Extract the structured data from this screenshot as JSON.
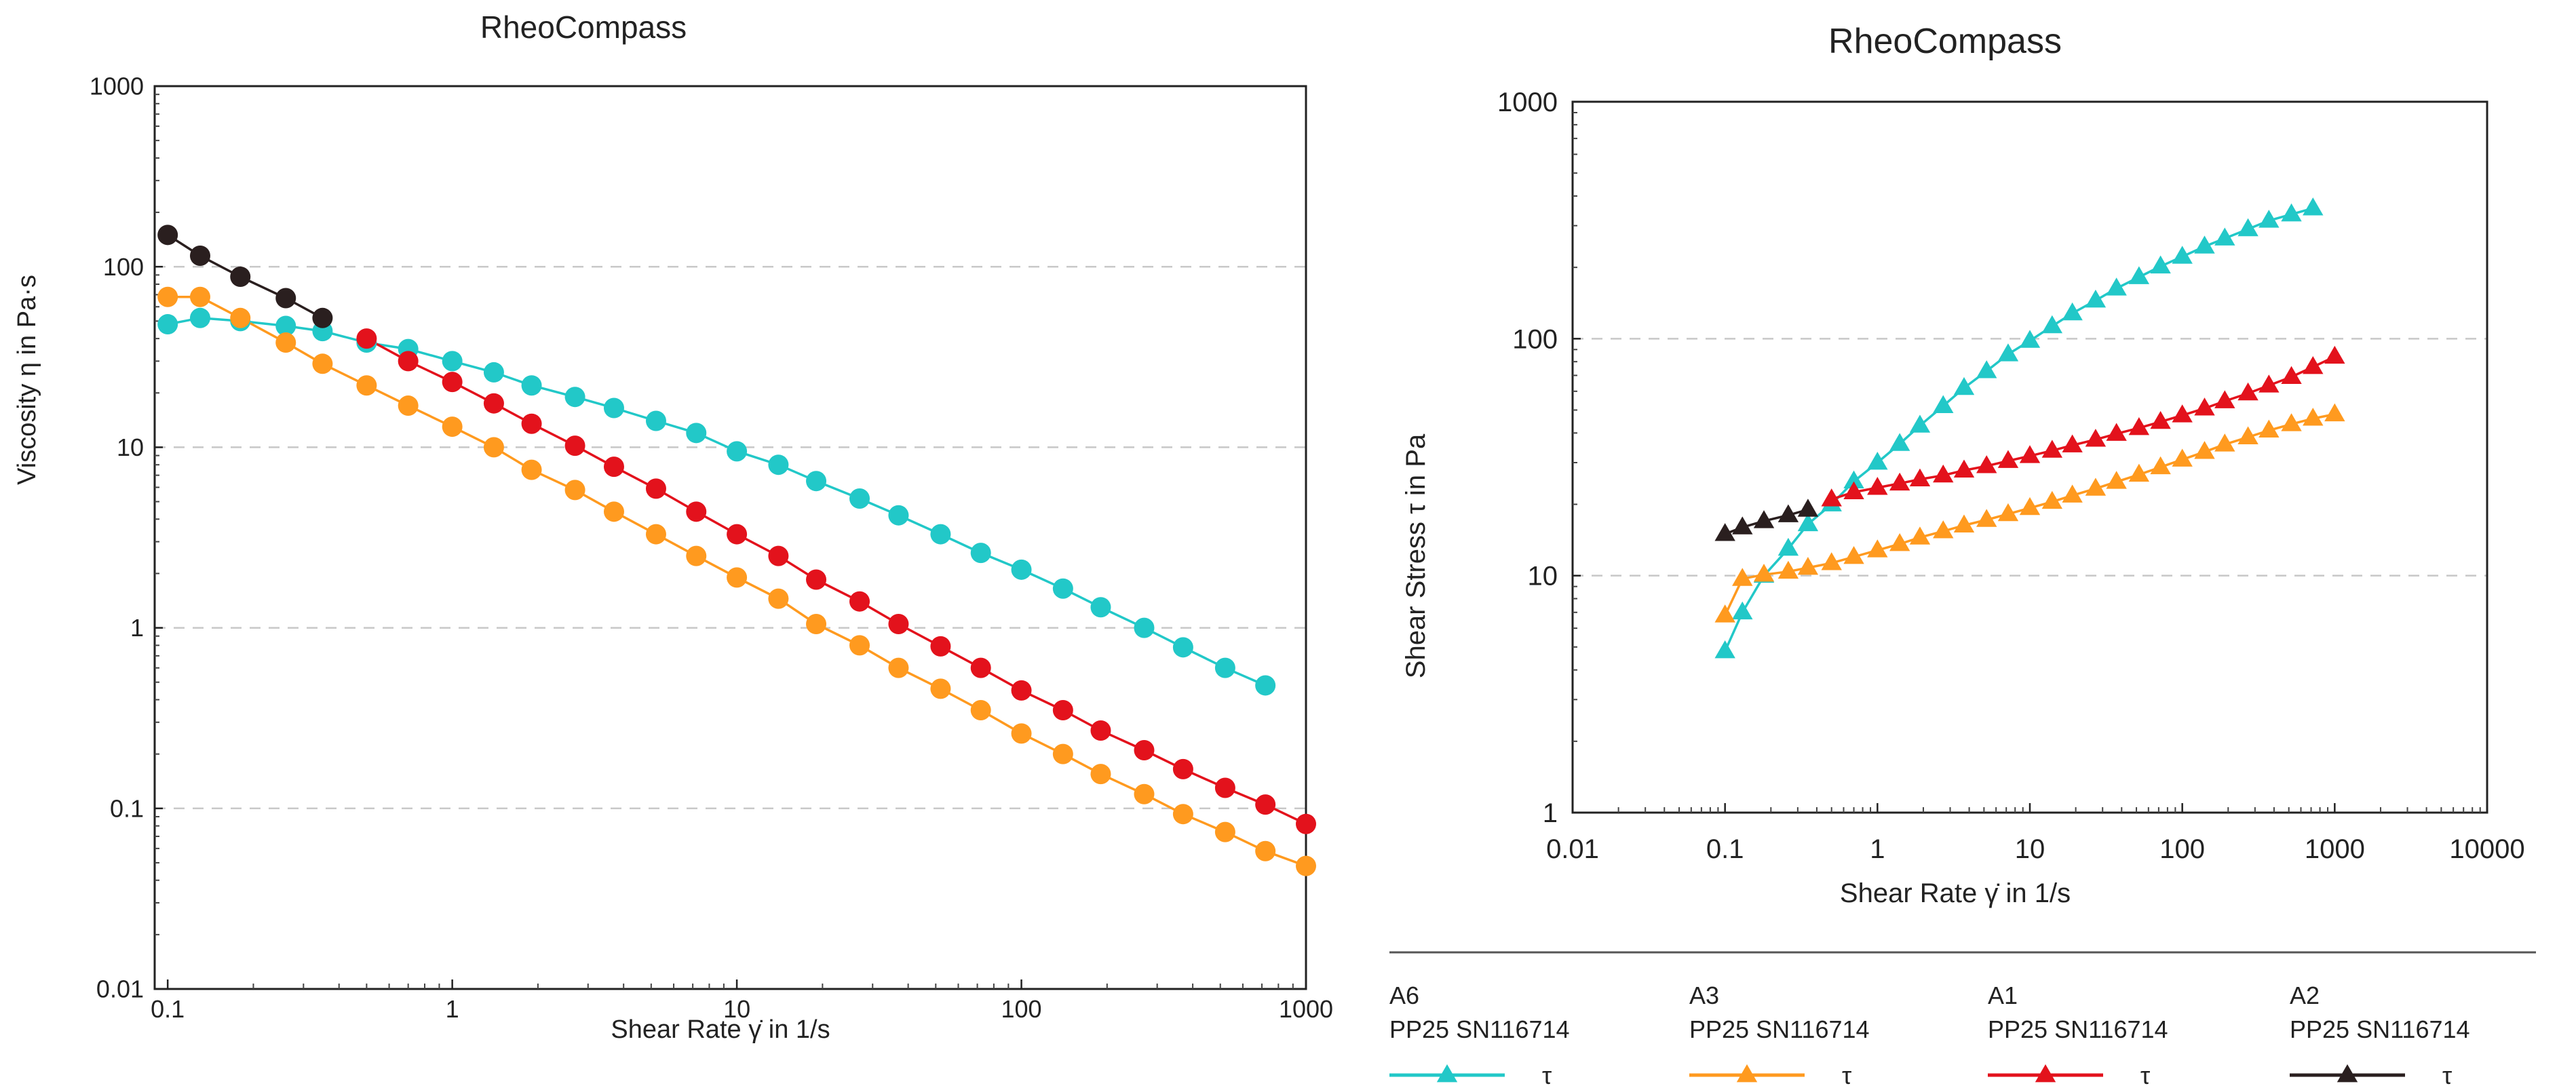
{
  "colors": {
    "A6": "#22c8c8",
    "A3": "#ff9a1f",
    "A1": "#e3121c",
    "A2": "#2a1f1f",
    "grid": "#c8c8c8",
    "legend_rule": "#555555"
  },
  "chart_data": [
    {
      "type": "line",
      "scale": "log-log",
      "title": "RheoCompass",
      "xlabel": "Shear Rate γ̇ in 1/s",
      "ylabel": "Viscosity η in Pa·s",
      "xlim": [
        0.09,
        1000
      ],
      "ylim": [
        0.01,
        1000
      ],
      "xticks": [
        0.1,
        1,
        10,
        100,
        1000
      ],
      "xtick_labels": [
        "0.1",
        "1",
        "10",
        "100",
        "1000"
      ],
      "yticks": [
        0.01,
        0.1,
        1,
        10,
        100,
        1000
      ],
      "ytick_labels": [
        "0.01",
        "0.1",
        "1",
        "10",
        "100",
        "1000"
      ],
      "grid": "horizontal dashed",
      "marker": "circle",
      "series": [
        {
          "name": "A6",
          "color_key": "A6",
          "x": [
            0.1,
            0.13,
            0.18,
            0.26,
            0.35,
            0.5,
            0.7,
            1,
            1.4,
            1.9,
            2.7,
            3.7,
            5.2,
            7.2,
            10,
            14,
            19,
            27,
            37,
            52,
            72,
            100,
            140,
            190,
            270,
            370,
            520,
            720
          ],
          "y": [
            48,
            52,
            50,
            47,
            44,
            38,
            35,
            30,
            26,
            22,
            19,
            16.5,
            14,
            12,
            9.5,
            8,
            6.5,
            5.2,
            4.2,
            3.3,
            2.6,
            2.1,
            1.65,
            1.3,
            1.0,
            0.78,
            0.6,
            0.48
          ]
        },
        {
          "name": "A3",
          "color_key": "A3",
          "x": [
            0.1,
            0.13,
            0.18,
            0.26,
            0.35,
            0.5,
            0.7,
            1,
            1.4,
            1.9,
            2.7,
            3.7,
            5.2,
            7.2,
            10,
            14,
            19,
            27,
            37,
            52,
            72,
            100,
            140,
            190,
            270,
            370,
            520,
            720,
            1000
          ],
          "y": [
            68,
            68,
            52,
            38,
            29,
            22,
            17,
            13,
            10,
            7.5,
            5.8,
            4.4,
            3.3,
            2.5,
            1.9,
            1.45,
            1.05,
            0.8,
            0.6,
            0.46,
            0.35,
            0.26,
            0.2,
            0.155,
            0.12,
            0.093,
            0.074,
            0.058,
            0.048
          ]
        },
        {
          "name": "A1",
          "color_key": "A1",
          "x": [
            0.5,
            0.7,
            1,
            1.4,
            1.9,
            2.7,
            3.7,
            5.2,
            7.2,
            10,
            14,
            19,
            27,
            37,
            52,
            72,
            100,
            140,
            190,
            270,
            370,
            520,
            720,
            1000
          ],
          "y": [
            40,
            30,
            23,
            17.5,
            13.5,
            10.2,
            7.8,
            5.9,
            4.4,
            3.3,
            2.5,
            1.85,
            1.4,
            1.05,
            0.79,
            0.6,
            0.45,
            0.35,
            0.27,
            0.21,
            0.165,
            0.13,
            0.105,
            0.082
          ]
        },
        {
          "name": "A2",
          "color_key": "A2",
          "x": [
            0.1,
            0.13,
            0.18,
            0.26,
            0.35
          ],
          "y": [
            150,
            115,
            88,
            67,
            52
          ]
        }
      ]
    },
    {
      "type": "line",
      "scale": "log-log",
      "title": "RheoCompass",
      "xlabel": "Shear Rate γ̇ in 1/s",
      "ylabel": "Shear Stress τ in Pa",
      "xlim": [
        0.01,
        10000
      ],
      "ylim": [
        1,
        1000
      ],
      "xticks": [
        0.01,
        0.1,
        1,
        10,
        100,
        1000,
        10000
      ],
      "xtick_labels": [
        "0.01",
        "0.1",
        "1",
        "10",
        "100",
        "1000",
        "10000"
      ],
      "yticks": [
        1,
        10,
        100,
        1000
      ],
      "ytick_labels": [
        "1",
        "10",
        "100",
        "1000"
      ],
      "grid": "horizontal dashed",
      "marker": "triangle",
      "series": [
        {
          "name": "A6",
          "color_key": "A6",
          "x": [
            0.1,
            0.13,
            0.18,
            0.26,
            0.35,
            0.5,
            0.7,
            1,
            1.4,
            1.9,
            2.7,
            3.7,
            5.2,
            7.2,
            10,
            14,
            19,
            27,
            37,
            52,
            72,
            100,
            140,
            190,
            270,
            370,
            520,
            720
          ],
          "y": [
            4.8,
            7,
            10,
            13,
            16.5,
            20,
            25,
            30,
            36,
            43,
            52,
            62,
            73,
            86,
            98,
            113,
            128,
            145,
            163,
            182,
            202,
            222,
            245,
            265,
            290,
            315,
            335,
            355
          ]
        },
        {
          "name": "A3",
          "color_key": "A3",
          "x": [
            0.1,
            0.13,
            0.18,
            0.26,
            0.35,
            0.5,
            0.7,
            1,
            1.4,
            1.9,
            2.7,
            3.7,
            5.2,
            7.2,
            10,
            14,
            19,
            27,
            37,
            52,
            72,
            100,
            140,
            190,
            270,
            370,
            520,
            720,
            1000
          ],
          "y": [
            6.8,
            9.7,
            10.1,
            10.4,
            10.8,
            11.3,
            12.0,
            12.8,
            13.6,
            14.5,
            15.4,
            16.3,
            17.2,
            18.2,
            19.3,
            20.5,
            21.8,
            23.3,
            24.9,
            26.7,
            28.7,
            30.9,
            33.3,
            35.8,
            38.4,
            41.0,
            43.6,
            46.0,
            48.0
          ]
        },
        {
          "name": "A1",
          "color_key": "A1",
          "x": [
            0.5,
            0.7,
            1,
            1.4,
            1.9,
            2.7,
            3.7,
            5.2,
            7.2,
            10,
            14,
            19,
            27,
            37,
            52,
            72,
            100,
            140,
            190,
            270,
            370,
            520,
            720,
            1000
          ],
          "y": [
            21,
            22.5,
            23.5,
            24.5,
            25.5,
            26.5,
            27.8,
            29,
            30.5,
            32,
            33.7,
            35.5,
            37.5,
            39.7,
            42,
            44.6,
            47.5,
            50.8,
            54.5,
            58.8,
            63.5,
            69,
            76,
            84
          ]
        },
        {
          "name": "A2",
          "color_key": "A2",
          "x": [
            0.1,
            0.13,
            0.18,
            0.26,
            0.35
          ],
          "y": [
            15,
            16,
            17,
            18,
            19
          ]
        }
      ]
    }
  ],
  "legend": [
    {
      "id": "A6",
      "line1": "A6",
      "line2": "PP25 SN116714",
      "symbol": "τ",
      "color_key": "A6"
    },
    {
      "id": "A3",
      "line1": "A3",
      "line2": "PP25 SN116714",
      "symbol": "τ",
      "color_key": "A3"
    },
    {
      "id": "A1",
      "line1": "A1",
      "line2": "PP25 SN116714",
      "symbol": "τ",
      "color_key": "A1"
    },
    {
      "id": "A2",
      "line1": "A2",
      "line2": "PP25 SN116714",
      "symbol": "τ",
      "color_key": "A2"
    }
  ]
}
